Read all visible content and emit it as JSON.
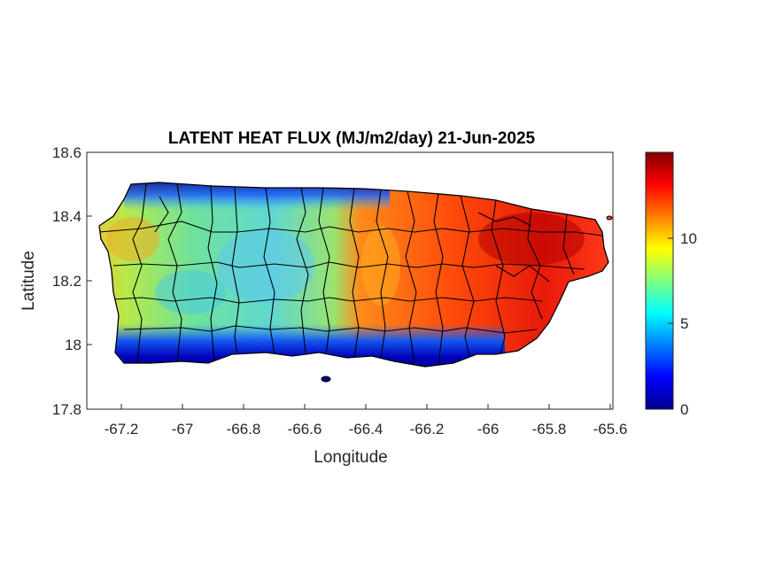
{
  "title": "LATENT HEAT FLUX (MJ/m2/day) 21-Jun-2025",
  "chart_data": {
    "type": "heatmap",
    "title": "LATENT HEAT FLUX (MJ/m2/day) 21-Jun-2025",
    "xlabel": "Longitude",
    "ylabel": "Latitude",
    "xlim": [
      -67.3,
      -65.58
    ],
    "ylim": [
      17.8,
      18.6
    ],
    "xticks": [
      "-67.2",
      "-67",
      "-66.8",
      "-66.6",
      "-66.4",
      "-66.2",
      "-66",
      "-65.8",
      "-65.6"
    ],
    "yticks": [
      "18.6",
      "18.4",
      "18.2",
      "18",
      "17.8"
    ],
    "colormap": "jet",
    "colorbar": {
      "min": 0,
      "max": 15,
      "ticks": [
        "0",
        "5",
        "10"
      ]
    },
    "region": "Puerto Rico (municipality boundaries)",
    "field_summary": [
      {
        "lon_range": [
          -67.25,
          -66.45
        ],
        "value_range": [
          5,
          9
        ],
        "note": "west/central interior mostly green-cyan"
      },
      {
        "lon_range": [
          -66.45,
          -65.62
        ],
        "value_range": [
          11,
          15
        ],
        "note": "east half orange-red, darkest red in far northeast"
      },
      {
        "band": "south coast strip",
        "value_range": [
          0,
          3
        ],
        "note": "dark blue"
      },
      {
        "band": "north-west coast strip",
        "value_range": [
          1,
          4
        ],
        "note": "blue"
      }
    ]
  }
}
